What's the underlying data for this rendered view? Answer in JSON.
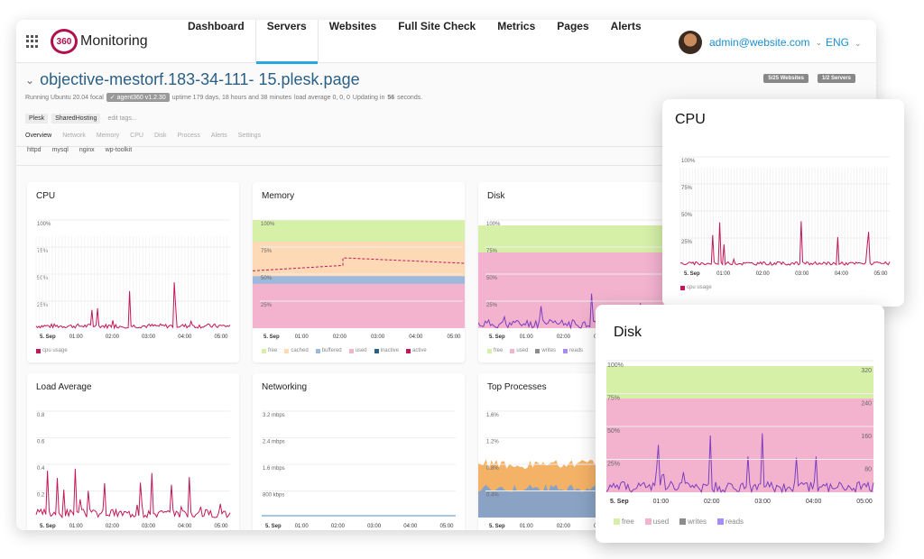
{
  "brand": {
    "logo_mark": "360",
    "name": "Monitoring"
  },
  "nav": {
    "items": [
      {
        "label": "Dashboard"
      },
      {
        "label": "Servers"
      },
      {
        "label": "Websites"
      },
      {
        "label": "Full Site Check"
      },
      {
        "label": "Metrics"
      },
      {
        "label": "Pages"
      },
      {
        "label": "Alerts"
      }
    ],
    "active_index": 1
  },
  "user": {
    "email": "admin@website.com",
    "lang": "ENG"
  },
  "server": {
    "name": "objective-mestorf.183-34-111- 15.plesk.page",
    "running": "Running Ubuntu 20.04 focal",
    "agent": "✓ agent360 v1.2.30",
    "uptime": "uptime 179 days, 18 hours and 38 minutes",
    "load": "load average 0, 0, 0",
    "updating_prefix": "Updating in",
    "updating_secs": "56",
    "updating_suffix": "seconds.",
    "badge_websites": "5/25 Websites",
    "badge_servers": "1/2 Servers",
    "tags": [
      "Plesk",
      "SharedHosting"
    ],
    "edit_tags": "edit tags...",
    "subnav": [
      "Overview",
      "Network",
      "Memory",
      "CPU",
      "Disk",
      "Process",
      "Alerts",
      "Settings"
    ],
    "services": [
      "httpd",
      "mysql",
      "nginx",
      "wp-toolkit"
    ]
  },
  "colors": {
    "accent": "#29a8e0",
    "brand": "#b0104d",
    "cpu": "#c2185b",
    "free": "#d6f0a8",
    "used": "#f3b3cf",
    "cached": "#fdd9b5",
    "buffered": "#9cb9dc",
    "writes": "#8c8c8c",
    "reads": "#a78bfa"
  },
  "x_ticks": [
    "5. Sep",
    "01:00",
    "02:00",
    "03:00",
    "04:00",
    "05:00"
  ],
  "cards": {
    "cpu": {
      "title": "CPU",
      "y_ticks": [
        "100%",
        "75%",
        "50%",
        "25%"
      ],
      "legend": [
        "cpu usage"
      ]
    },
    "memory": {
      "title": "Memory",
      "y_ticks": [
        "100%",
        "75%",
        "50%",
        "25%"
      ],
      "legend": [
        "free",
        "cached",
        "buffered",
        "used",
        "inactive",
        "active"
      ]
    },
    "disk": {
      "title": "Disk",
      "y_ticks": [
        "100%",
        "75%",
        "50%",
        "25%"
      ],
      "legend": [
        "free",
        "used",
        "writes",
        "reads"
      ]
    },
    "load": {
      "title": "Load Average",
      "y_ticks": [
        "0.8",
        "0.6",
        "0.4",
        "0.2"
      ]
    },
    "network": {
      "title": "Networking",
      "y_ticks": [
        "3.2 mbps",
        "2.4 mbps",
        "1.6 mbps",
        "800 kbps"
      ]
    },
    "processes": {
      "title": "Top Processes",
      "y_ticks": [
        "1.6%",
        "1.2%",
        "0.8%",
        "0.4%"
      ]
    }
  },
  "popup_cpu": {
    "title": "CPU",
    "y_ticks": [
      "100%",
      "75%",
      "50%",
      "25%"
    ],
    "legend": [
      "cpu usage"
    ]
  },
  "popup_disk": {
    "title": "Disk",
    "y_ticks": [
      "100%",
      "75%",
      "50%",
      "25%"
    ],
    "y2_ticks": [
      "320",
      "240",
      "160",
      "80"
    ],
    "legend": [
      "free",
      "used",
      "writes",
      "reads"
    ]
  }
}
